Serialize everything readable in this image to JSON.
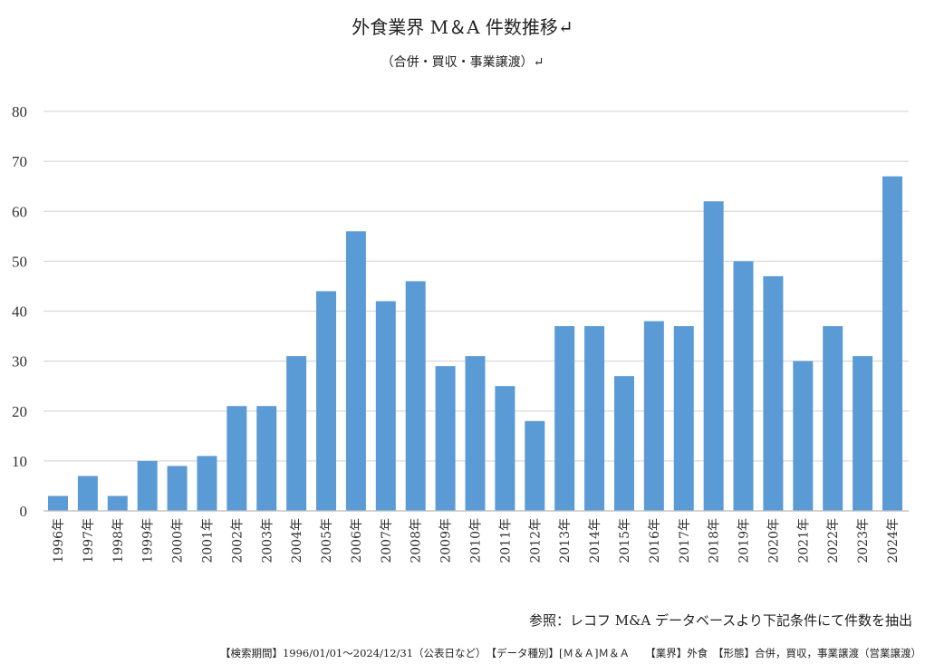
{
  "chart_data": {
    "type": "bar",
    "title": "外食業界 M＆A 件数推移↵",
    "subtitle": "（合併・買収・事業譲渡）↵",
    "categories": [
      "1996年",
      "1997年",
      "1998年",
      "1999年",
      "2000年",
      "2001年",
      "2002年",
      "2003年",
      "2004年",
      "2005年",
      "2006年",
      "2007年",
      "2008年",
      "2009年",
      "2010年",
      "2011年",
      "2012年",
      "2013年",
      "2014年",
      "2015年",
      "2016年",
      "2017年",
      "2018年",
      "2019年",
      "2020年",
      "2021年",
      "2022年",
      "2023年",
      "2024年"
    ],
    "values": [
      3,
      7,
      3,
      10,
      9,
      11,
      21,
      21,
      31,
      44,
      56,
      42,
      46,
      29,
      31,
      25,
      18,
      37,
      37,
      27,
      38,
      37,
      62,
      50,
      47,
      30,
      37,
      31,
      67
    ],
    "ylim": [
      0,
      80
    ],
    "yticks": [
      0,
      10,
      20,
      30,
      40,
      50,
      60,
      70,
      80
    ],
    "grid": true,
    "bar_color": "#5b9bd5",
    "xlabel": "",
    "ylabel": ""
  },
  "source": "参照：レコフ M&A データベースより下記条件にて件数を抽出",
  "note": "【検索期間】1996/01/01～2024/12/31（公表日など）　【データ種別】[Ｍ＆Ａ]Ｍ＆Ａ　　【業界】外食　【形態】合併，買収，事業譲渡（営業譲渡）"
}
